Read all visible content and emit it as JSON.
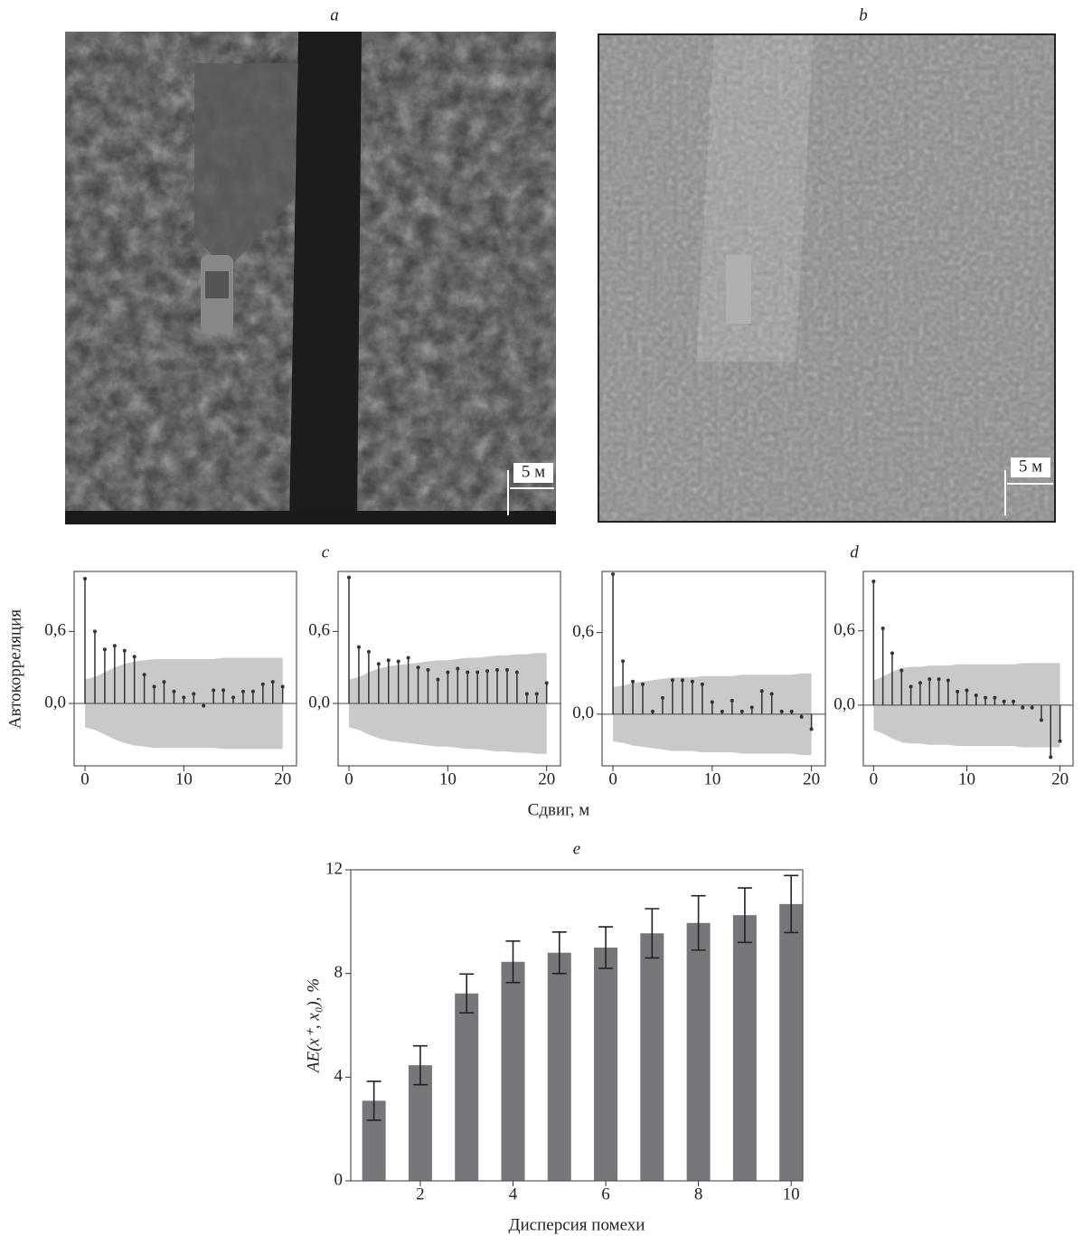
{
  "panels": {
    "a": {
      "label": "a",
      "scale": "5 м"
    },
    "b": {
      "label": "b",
      "scale": "5 м"
    }
  },
  "acf": {
    "label_c": "c",
    "label_d": "d",
    "ylabel": "Автокорреляция",
    "xlabel": "Сдвиг, м"
  },
  "chart_data": [
    {
      "type": "stem",
      "x": [
        0,
        1,
        2,
        3,
        4,
        5,
        6,
        7,
        8,
        9,
        10,
        11,
        12,
        13,
        14,
        15,
        16,
        17,
        18,
        19,
        20
      ],
      "values": [
        1.04,
        0.6,
        0.45,
        0.48,
        0.44,
        0.39,
        0.24,
        0.14,
        0.18,
        0.1,
        0.05,
        0.08,
        -0.02,
        0.11,
        0.11,
        0.05,
        0.1,
        0.1,
        0.16,
        0.18,
        0.14
      ],
      "conf_upper": [
        0.2,
        0.22,
        0.26,
        0.3,
        0.33,
        0.35,
        0.36,
        0.37,
        0.37,
        0.37,
        0.37,
        0.37,
        0.37,
        0.37,
        0.38,
        0.38,
        0.38,
        0.38,
        0.38,
        0.38,
        0.38
      ],
      "conf_lower": [
        -0.2,
        -0.22,
        -0.26,
        -0.3,
        -0.33,
        -0.35,
        -0.36,
        -0.37,
        -0.37,
        -0.37,
        -0.37,
        -0.37,
        -0.37,
        -0.37,
        -0.38,
        -0.38,
        -0.38,
        -0.38,
        -0.38,
        -0.38,
        -0.38
      ],
      "xlim": [
        -1.1,
        21.4
      ],
      "ylim": [
        -0.52,
        1.1
      ],
      "xticks": [
        0,
        10,
        20
      ],
      "yticks": [
        {
          "value": 0,
          "label": "0,0"
        },
        {
          "value": 0.6,
          "label": "0,6"
        }
      ],
      "color": "#333333",
      "band_color": "#c9c9c9"
    },
    {
      "type": "stem",
      "x": [
        0,
        1,
        2,
        3,
        4,
        5,
        6,
        7,
        8,
        9,
        10,
        11,
        12,
        13,
        14,
        15,
        16,
        17,
        18,
        19,
        20
      ],
      "values": [
        1.05,
        0.47,
        0.43,
        0.33,
        0.36,
        0.35,
        0.38,
        0.3,
        0.28,
        0.2,
        0.26,
        0.29,
        0.26,
        0.26,
        0.27,
        0.28,
        0.28,
        0.26,
        0.08,
        0.08,
        0.17
      ],
      "conf_upper": [
        0.2,
        0.22,
        0.26,
        0.29,
        0.31,
        0.32,
        0.33,
        0.34,
        0.35,
        0.36,
        0.36,
        0.37,
        0.38,
        0.38,
        0.39,
        0.4,
        0.4,
        0.41,
        0.41,
        0.42,
        0.42
      ],
      "conf_lower": [
        -0.2,
        -0.22,
        -0.26,
        -0.29,
        -0.31,
        -0.32,
        -0.33,
        -0.34,
        -0.35,
        -0.36,
        -0.36,
        -0.37,
        -0.38,
        -0.38,
        -0.39,
        -0.4,
        -0.4,
        -0.41,
        -0.41,
        -0.42,
        -0.42
      ],
      "xlim": [
        -1.1,
        21.4
      ],
      "ylim": [
        -0.52,
        1.1
      ],
      "xticks": [
        0,
        10,
        20
      ],
      "yticks": [
        {
          "value": 0,
          "label": "0,0"
        },
        {
          "value": 0.6,
          "label": "0,6"
        }
      ],
      "color": "#333333",
      "band_color": "#c9c9c9"
    },
    {
      "type": "stem",
      "x": [
        0,
        1,
        2,
        3,
        4,
        5,
        6,
        7,
        8,
        9,
        10,
        11,
        12,
        13,
        14,
        15,
        16,
        17,
        18,
        19,
        20
      ],
      "values": [
        1.03,
        0.39,
        0.24,
        0.22,
        0.02,
        0.12,
        0.25,
        0.25,
        0.24,
        0.22,
        0.09,
        0.02,
        0.1,
        0.02,
        0.05,
        0.17,
        0.15,
        0.02,
        0.02,
        -0.02,
        -0.11
      ],
      "conf_upper": [
        0.2,
        0.21,
        0.23,
        0.24,
        0.25,
        0.26,
        0.27,
        0.27,
        0.27,
        0.28,
        0.28,
        0.28,
        0.28,
        0.29,
        0.29,
        0.29,
        0.29,
        0.29,
        0.29,
        0.3,
        0.3
      ],
      "conf_lower": [
        -0.2,
        -0.21,
        -0.23,
        -0.24,
        -0.25,
        -0.26,
        -0.27,
        -0.27,
        -0.27,
        -0.28,
        -0.28,
        -0.28,
        -0.28,
        -0.29,
        -0.29,
        -0.29,
        -0.29,
        -0.29,
        -0.29,
        -0.3,
        -0.3
      ],
      "xlim": [
        -1.1,
        21.4
      ],
      "ylim": [
        -0.38,
        1.05
      ],
      "xticks": [
        0,
        10,
        20
      ],
      "yticks": [
        {
          "value": 0,
          "label": "0,0"
        },
        {
          "value": 0.6,
          "label": "0,6"
        }
      ],
      "color": "#333333",
      "band_color": "#c9c9c9"
    },
    {
      "type": "stem",
      "x": [
        0,
        1,
        2,
        3,
        4,
        5,
        6,
        7,
        8,
        9,
        10,
        11,
        12,
        13,
        14,
        15,
        16,
        17,
        18,
        19,
        20
      ],
      "values": [
        1.0,
        0.62,
        0.42,
        0.28,
        0.15,
        0.18,
        0.21,
        0.21,
        0.2,
        0.11,
        0.12,
        0.08,
        0.06,
        0.06,
        0.03,
        0.03,
        -0.02,
        -0.02,
        -0.12,
        -0.42,
        -0.29
      ],
      "conf_upper": [
        0.2,
        0.23,
        0.27,
        0.3,
        0.31,
        0.31,
        0.32,
        0.32,
        0.32,
        0.33,
        0.33,
        0.33,
        0.33,
        0.33,
        0.33,
        0.33,
        0.34,
        0.34,
        0.34,
        0.34,
        0.34
      ],
      "conf_lower": [
        -0.2,
        -0.23,
        -0.27,
        -0.3,
        -0.31,
        -0.31,
        -0.32,
        -0.32,
        -0.32,
        -0.33,
        -0.33,
        -0.33,
        -0.33,
        -0.33,
        -0.33,
        -0.33,
        -0.34,
        -0.34,
        -0.34,
        -0.34,
        -0.34
      ],
      "xlim": [
        -1.1,
        21.4
      ],
      "ylim": [
        -0.49,
        1.08
      ],
      "xticks": [
        0,
        10,
        20
      ],
      "yticks": [
        {
          "value": 0,
          "label": "0,0"
        },
        {
          "value": 0.6,
          "label": "0,6"
        }
      ],
      "color": "#333333",
      "band_color": "#c9c9c9"
    },
    {
      "type": "bar",
      "title": "e",
      "xlabel": "Дисперсия помехи",
      "ylabel": "AE(x⁺, x₀), %",
      "x": [
        1,
        2,
        3,
        4,
        5,
        6,
        7,
        8,
        9,
        10
      ],
      "values": [
        3.09,
        4.46,
        7.23,
        8.45,
        8.8,
        9.0,
        9.55,
        9.95,
        10.25,
        10.68
      ],
      "errors": [
        0.75,
        0.75,
        0.75,
        0.8,
        0.8,
        0.8,
        0.95,
        1.05,
        1.05,
        1.1
      ],
      "xlim": [
        0.5,
        10.25
      ],
      "ylim": [
        0,
        12
      ],
      "xticks": [
        2,
        4,
        6,
        8,
        10
      ],
      "yticks": [
        0,
        4,
        8,
        12
      ],
      "color": "#76777b"
    }
  ]
}
